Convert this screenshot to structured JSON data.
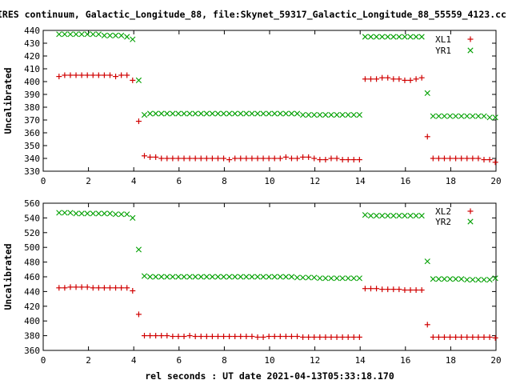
{
  "title": "IRES continuum, Galactic_Longitude_88, file:Skynet_59317_Galactic_Longitude_88_55559_4123.cc",
  "xlabel": "rel seconds : UT date 2021-04-13T05:33:18.170",
  "colors": {
    "red": "#d00000",
    "green": "#00a000"
  },
  "chart_data": [
    {
      "type": "scatter",
      "ylabel": "Uncalibrated",
      "xlim": [
        0,
        20
      ],
      "ylim": [
        330,
        440
      ],
      "xticks": [
        0,
        2,
        4,
        6,
        8,
        10,
        12,
        14,
        16,
        18,
        20
      ],
      "yticks": [
        330,
        340,
        350,
        360,
        370,
        380,
        390,
        400,
        410,
        420,
        430,
        440
      ],
      "legend_position": "top-right",
      "series": [
        {
          "name": "XL1",
          "marker": "plus",
          "color": "#d00000",
          "x": [
            0.7,
            0.95,
            1.2,
            1.45,
            1.7,
            1.95,
            2.2,
            2.45,
            2.7,
            2.95,
            3.2,
            3.45,
            3.7,
            3.95,
            4.22,
            4.47,
            4.72,
            4.97,
            5.22,
            5.47,
            5.72,
            5.97,
            6.22,
            6.47,
            6.72,
            6.97,
            7.22,
            7.47,
            7.72,
            7.97,
            8.22,
            8.47,
            8.72,
            8.97,
            9.22,
            9.47,
            9.72,
            9.97,
            10.22,
            10.47,
            10.72,
            10.97,
            11.22,
            11.47,
            11.72,
            11.97,
            12.22,
            12.47,
            12.72,
            12.97,
            13.22,
            13.47,
            13.72,
            13.97,
            14.22,
            14.47,
            14.72,
            14.97,
            15.22,
            15.47,
            15.72,
            15.97,
            16.22,
            16.47,
            16.72,
            16.97,
            17.22,
            17.47,
            17.72,
            17.97,
            18.22,
            18.47,
            18.72,
            18.97,
            19.22,
            19.47,
            19.72,
            19.97
          ],
          "y": [
            404,
            405,
            405,
            405,
            405,
            405,
            405,
            405,
            405,
            405,
            404,
            405,
            405,
            401,
            369,
            342,
            341,
            341,
            340,
            340,
            340,
            340,
            340,
            340,
            340,
            340,
            340,
            340,
            340,
            340,
            339,
            340,
            340,
            340,
            340,
            340,
            340,
            340,
            340,
            340,
            341,
            340,
            340,
            341,
            341,
            340,
            339,
            339,
            340,
            340,
            339,
            339,
            339,
            339,
            402,
            402,
            402,
            403,
            403,
            402,
            402,
            401,
            401,
            402,
            403,
            357,
            340,
            340,
            340,
            340,
            340,
            340,
            340,
            340,
            340,
            339,
            339,
            337
          ]
        },
        {
          "name": "YR1",
          "marker": "cross",
          "color": "#00a000",
          "x": [
            0.7,
            0.95,
            1.2,
            1.45,
            1.7,
            1.95,
            2.2,
            2.45,
            2.7,
            2.95,
            3.2,
            3.45,
            3.7,
            3.95,
            4.22,
            4.47,
            4.72,
            4.97,
            5.22,
            5.47,
            5.72,
            5.97,
            6.22,
            6.47,
            6.72,
            6.97,
            7.22,
            7.47,
            7.72,
            7.97,
            8.22,
            8.47,
            8.72,
            8.97,
            9.22,
            9.47,
            9.72,
            9.97,
            10.22,
            10.47,
            10.72,
            10.97,
            11.22,
            11.47,
            11.72,
            11.97,
            12.22,
            12.47,
            12.72,
            12.97,
            13.22,
            13.47,
            13.72,
            13.97,
            14.22,
            14.47,
            14.72,
            14.97,
            15.22,
            15.47,
            15.72,
            15.97,
            16.22,
            16.47,
            16.72,
            16.97,
            17.22,
            17.47,
            17.72,
            17.97,
            18.22,
            18.47,
            18.72,
            18.97,
            19.22,
            19.47,
            19.72,
            19.97
          ],
          "y": [
            437,
            437,
            437,
            437,
            437,
            437,
            437,
            437,
            436,
            436,
            436,
            436,
            435,
            433,
            401,
            374,
            375,
            375,
            375,
            375,
            375,
            375,
            375,
            375,
            375,
            375,
            375,
            375,
            375,
            375,
            375,
            375,
            375,
            375,
            375,
            375,
            375,
            375,
            375,
            375,
            375,
            375,
            375,
            374,
            374,
            374,
            374,
            374,
            374,
            374,
            374,
            374,
            374,
            374,
            435,
            435,
            435,
            435,
            435,
            435,
            435,
            435,
            435,
            435,
            435,
            391,
            373,
            373,
            373,
            373,
            373,
            373,
            373,
            373,
            373,
            373,
            372,
            372
          ]
        }
      ]
    },
    {
      "type": "scatter",
      "ylabel": "Uncalibrated",
      "xlim": [
        0,
        20
      ],
      "ylim": [
        360,
        560
      ],
      "xticks": [
        0,
        2,
        4,
        6,
        8,
        10,
        12,
        14,
        16,
        18,
        20
      ],
      "yticks": [
        360,
        380,
        400,
        420,
        440,
        460,
        480,
        500,
        520,
        540,
        560
      ],
      "legend_position": "top-right",
      "series": [
        {
          "name": "XL2",
          "marker": "plus",
          "color": "#d00000",
          "x": [
            0.7,
            0.95,
            1.2,
            1.45,
            1.7,
            1.95,
            2.2,
            2.45,
            2.7,
            2.95,
            3.2,
            3.45,
            3.7,
            3.95,
            4.22,
            4.47,
            4.72,
            4.97,
            5.22,
            5.47,
            5.72,
            5.97,
            6.22,
            6.47,
            6.72,
            6.97,
            7.22,
            7.47,
            7.72,
            7.97,
            8.22,
            8.47,
            8.72,
            8.97,
            9.22,
            9.47,
            9.72,
            9.97,
            10.22,
            10.47,
            10.72,
            10.97,
            11.22,
            11.47,
            11.72,
            11.97,
            12.22,
            12.47,
            12.72,
            12.97,
            13.22,
            13.47,
            13.72,
            13.97,
            14.22,
            14.47,
            14.72,
            14.97,
            15.22,
            15.47,
            15.72,
            15.97,
            16.22,
            16.47,
            16.72,
            16.97,
            17.22,
            17.47,
            17.72,
            17.97,
            18.22,
            18.47,
            18.72,
            18.97,
            19.22,
            19.47,
            19.72,
            19.97
          ],
          "y": [
            445,
            445,
            446,
            446,
            446,
            446,
            445,
            445,
            445,
            445,
            445,
            445,
            445,
            441,
            409,
            380,
            380,
            380,
            380,
            380,
            379,
            379,
            379,
            380,
            379,
            379,
            379,
            379,
            379,
            379,
            379,
            379,
            379,
            379,
            379,
            378,
            378,
            379,
            379,
            379,
            379,
            379,
            379,
            378,
            378,
            378,
            378,
            378,
            378,
            378,
            378,
            378,
            378,
            378,
            444,
            444,
            444,
            443,
            443,
            443,
            443,
            442,
            442,
            442,
            442,
            395,
            378,
            378,
            378,
            378,
            378,
            378,
            378,
            378,
            378,
            378,
            378,
            377
          ]
        },
        {
          "name": "YR2",
          "marker": "cross",
          "color": "#00a000",
          "x": [
            0.7,
            0.95,
            1.2,
            1.45,
            1.7,
            1.95,
            2.2,
            2.45,
            2.7,
            2.95,
            3.2,
            3.45,
            3.7,
            3.95,
            4.22,
            4.47,
            4.72,
            4.97,
            5.22,
            5.47,
            5.72,
            5.97,
            6.22,
            6.47,
            6.72,
            6.97,
            7.22,
            7.47,
            7.72,
            7.97,
            8.22,
            8.47,
            8.72,
            8.97,
            9.22,
            9.47,
            9.72,
            9.97,
            10.22,
            10.47,
            10.72,
            10.97,
            11.22,
            11.47,
            11.72,
            11.97,
            12.22,
            12.47,
            12.72,
            12.97,
            13.22,
            13.47,
            13.72,
            13.97,
            14.22,
            14.47,
            14.72,
            14.97,
            15.22,
            15.47,
            15.72,
            15.97,
            16.22,
            16.47,
            16.72,
            16.97,
            17.22,
            17.47,
            17.72,
            17.97,
            18.22,
            18.47,
            18.72,
            18.97,
            19.22,
            19.47,
            19.72,
            19.97
          ],
          "y": [
            547,
            547,
            547,
            546,
            546,
            546,
            546,
            546,
            546,
            546,
            545,
            545,
            545,
            540,
            497,
            461,
            460,
            460,
            460,
            460,
            460,
            460,
            460,
            460,
            460,
            460,
            460,
            460,
            460,
            460,
            460,
            460,
            460,
            460,
            460,
            460,
            460,
            460,
            460,
            460,
            460,
            460,
            459,
            459,
            459,
            459,
            458,
            458,
            458,
            458,
            458,
            458,
            458,
            458,
            544,
            543,
            543,
            543,
            543,
            543,
            543,
            543,
            543,
            543,
            543,
            481,
            457,
            457,
            457,
            457,
            457,
            457,
            456,
            456,
            456,
            456,
            456,
            458
          ]
        }
      ]
    }
  ]
}
